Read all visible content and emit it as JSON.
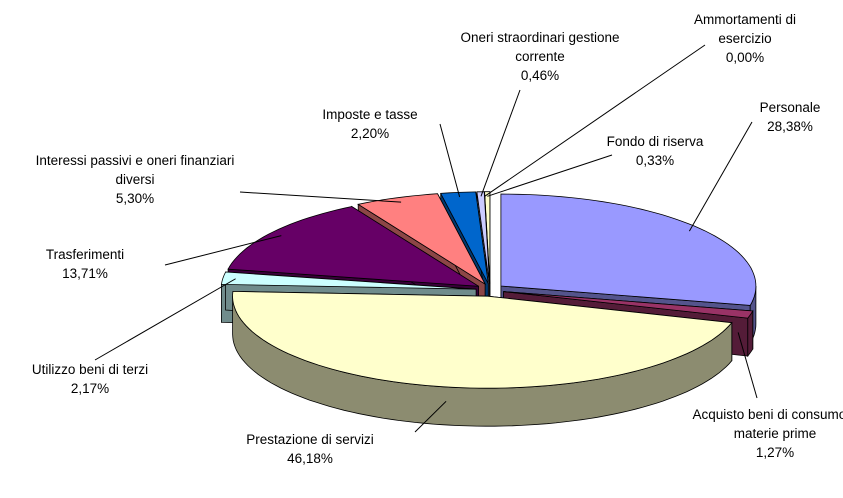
{
  "chart_data": {
    "type": "pie3d",
    "categories": [
      "Personale",
      "Acquisto beni di consumo e materie prime",
      "Prestazione di servizi",
      "Utilizzo beni di terzi",
      "Trasferimenti",
      "Interessi passivi e oneri finanziari diversi",
      "Imposte e tasse",
      "Oneri straordinari gestione corrente",
      "Ammortamenti di esercizio",
      "Fondo di riserva"
    ],
    "values": [
      28.38,
      1.27,
      46.18,
      2.17,
      13.71,
      5.3,
      2.2,
      0.46,
      0.0,
      0.33
    ],
    "value_labels": [
      "28,38%",
      "1,27%",
      "46,18%",
      "2,17%",
      "13,71%",
      "5,30%",
      "2,20%",
      "0,46%",
      "0,00%",
      "0,33%"
    ],
    "colors": [
      "#9999FF",
      "#993366",
      "#FFFFCC",
      "#CCFFFF",
      "#660066",
      "#FF8080",
      "#0066CC",
      "#CCCCFF",
      "#000080",
      "#FFFFCC"
    ]
  }
}
